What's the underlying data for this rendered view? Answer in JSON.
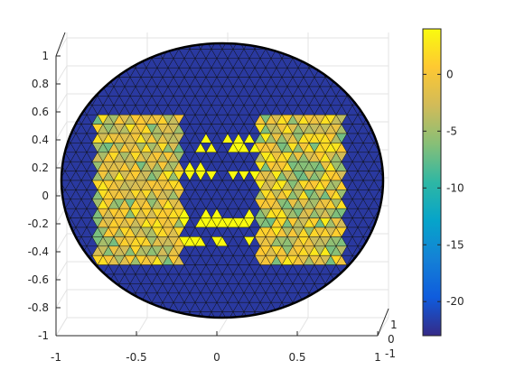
{
  "chart_data": {
    "type": "surface",
    "title": "",
    "xlabel": "",
    "ylabel": "",
    "zlabel": "",
    "grid": true,
    "view": "3d-perspective",
    "mesh": "triangulated-sphere",
    "surface_colormap": "parula",
    "xlim": [
      -1,
      1
    ],
    "ylim": [
      -1,
      1
    ],
    "zlim": [
      -1,
      1
    ],
    "x_ticks": [
      "-1",
      "-0.5",
      "0",
      "0.5",
      "1"
    ],
    "y_ticks": [
      "-1",
      "0",
      "1"
    ],
    "z_ticks": [
      "-1",
      "-0.8",
      "-0.6",
      "-0.4",
      "-0.2",
      "0",
      "0.2",
      "0.4",
      "0.6",
      "0.8",
      "1"
    ],
    "colorbar": {
      "location": "right",
      "limits": [
        -23,
        4
      ],
      "ticks": [
        "0",
        "-5",
        "-10",
        "-15",
        "-20"
      ],
      "tick_values": [
        0,
        -5,
        -10,
        -15,
        -20
      ],
      "colormap": [
        "#352a87",
        "#0f5cdd",
        "#1481d6",
        "#06a4ca",
        "#2eb7a4",
        "#87bf77",
        "#d1bb59",
        "#fec832",
        "#f9fb0e"
      ]
    },
    "background_value": -22,
    "regions": [
      {
        "label": "left patch",
        "value_range": [
          -7,
          3
        ]
      },
      {
        "label": "right patch",
        "value_range": [
          -7,
          3
        ]
      },
      {
        "label": "upper connecting band",
        "value_range": [
          3,
          4
        ]
      },
      {
        "label": "middle connecting band",
        "value_range": [
          3,
          4
        ]
      },
      {
        "label": "lower connecting band",
        "value_range": [
          3,
          4
        ]
      }
    ]
  }
}
